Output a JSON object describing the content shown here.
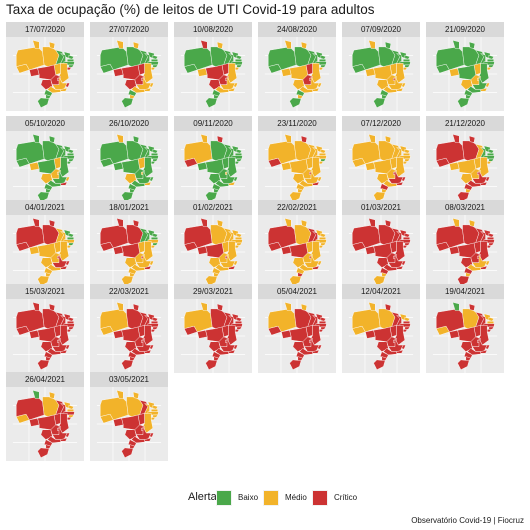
{
  "title": "Taxa de ocupação (%) de leitos de UTI Covid-19 para adultos",
  "caption": "Observatório Covid-19 | Fiocruz",
  "legend": {
    "title": "Alerta",
    "items": [
      {
        "label": "Baixo",
        "color": "#4aa84a"
      },
      {
        "label": "Médio",
        "color": "#f2b32a"
      },
      {
        "label": "Crítico",
        "color": "#cc3333"
      }
    ]
  },
  "chart_data": {
    "type": "choropleth-small-multiples",
    "title": "Taxa de ocupação (%) de leitos de UTI Covid-19 para adultos",
    "categories": [
      "Baixo",
      "Médio",
      "Crítico"
    ],
    "colors": {
      "Baixo": "#4aa84a",
      "Médio": "#f2b32a",
      "Crítico": "#cc3333"
    },
    "dates": [
      "17/07/2020",
      "27/07/2020",
      "10/08/2020",
      "24/08/2020",
      "07/09/2020",
      "21/09/2020",
      "05/10/2020",
      "26/10/2020",
      "09/11/2020",
      "23/11/2020",
      "07/12/2020",
      "21/12/2020",
      "04/01/2021",
      "18/01/2021",
      "01/02/2021",
      "22/02/2021",
      "01/03/2021",
      "08/03/2021",
      "15/03/2021",
      "22/03/2021",
      "29/03/2021",
      "05/04/2021",
      "12/04/2021",
      "19/04/2021",
      "26/04/2021",
      "03/05/2021"
    ],
    "states": [
      "AC",
      "AM",
      "RR",
      "PA",
      "AP",
      "MA",
      "TO",
      "RO",
      "MT",
      "PI",
      "CE",
      "RN",
      "PB",
      "PE",
      "AL",
      "SE",
      "BA",
      "GO",
      "DF",
      "MS",
      "MG",
      "ES",
      "RJ",
      "SP",
      "PR",
      "SC",
      "RS"
    ],
    "alerts": [
      [
        "Médio",
        "Médio",
        "Médio",
        "Médio",
        "Médio",
        "Baixo",
        "Médio",
        "Crítico",
        "Crítico",
        "Baixo",
        "Baixo",
        "Baixo",
        "Baixo",
        "Baixo",
        "Baixo",
        "Crítico",
        "Médio",
        "Crítico",
        "Crítico",
        "Crítico",
        "Médio",
        "Crítico",
        "Médio",
        "Médio",
        "Baixo",
        "Baixo",
        "Baixo"
      ],
      [
        "Baixo",
        "Baixo",
        "Médio",
        "Baixo",
        "Médio",
        "Baixo",
        "Crítico",
        "Crítico",
        "Crítico",
        "Baixo",
        "Baixo",
        "Baixo",
        "Baixo",
        "Baixo",
        "Baixo",
        "Médio",
        "Médio",
        "Crítico",
        "Crítico",
        "Crítico",
        "Médio",
        "Médio",
        "Médio",
        "Médio",
        "Baixo",
        "Médio",
        "Baixo"
      ],
      [
        "Baixo",
        "Baixo",
        "Crítico",
        "Baixo",
        "Médio",
        "Baixo",
        "Crítico",
        "Médio",
        "Crítico",
        "Baixo",
        "Baixo",
        "Baixo",
        "Baixo",
        "Baixo",
        "Baixo",
        "Médio",
        "Médio",
        "Crítico",
        "Crítico",
        "Crítico",
        "Médio",
        "Médio",
        "Médio",
        "Médio",
        "Baixo",
        "Baixo",
        "Baixo"
      ],
      [
        "Baixo",
        "Baixo",
        "Médio",
        "Baixo",
        "Médio",
        "Baixo",
        "Crítico",
        "Médio",
        "Médio",
        "Baixo",
        "Baixo",
        "Baixo",
        "Baixo",
        "Baixo",
        "Baixo",
        "Médio",
        "Médio",
        "Crítico",
        "Crítico",
        "Médio",
        "Médio",
        "Médio",
        "Médio",
        "Médio",
        "Baixo",
        "Médio",
        "Baixo"
      ],
      [
        "Baixo",
        "Baixo",
        "Médio",
        "Baixo",
        "Baixo",
        "Baixo",
        "Médio",
        "Médio",
        "Médio",
        "Baixo",
        "Baixo",
        "Baixo",
        "Baixo",
        "Baixo",
        "Baixo",
        "Médio",
        "Médio",
        "Médio",
        "Crítico",
        "Médio",
        "Médio",
        "Médio",
        "Médio",
        "Médio",
        "Baixo",
        "Baixo",
        "Baixo"
      ],
      [
        "Baixo",
        "Baixo",
        "Baixo",
        "Baixo",
        "Baixo",
        "Baixo",
        "Médio",
        "Médio",
        "Baixo",
        "Baixo",
        "Baixo",
        "Baixo",
        "Baixo",
        "Baixo",
        "Baixo",
        "Médio",
        "Baixo",
        "Médio",
        "Médio",
        "Médio",
        "Baixo",
        "Médio",
        "Médio",
        "Baixo",
        "Baixo",
        "Baixo",
        "Baixo"
      ],
      [
        "Baixo",
        "Baixo",
        "Baixo",
        "Baixo",
        "Baixo",
        "Baixo",
        "Médio",
        "Médio",
        "Baixo",
        "Baixo",
        "Baixo",
        "Baixo",
        "Baixo",
        "Baixo",
        "Baixo",
        "Baixo",
        "Baixo",
        "Médio",
        "Médio",
        "Médio",
        "Baixo",
        "Médio",
        "Crítico",
        "Baixo",
        "Baixo",
        "Baixo",
        "Baixo"
      ],
      [
        "Baixo",
        "Baixo",
        "Médio",
        "Baixo",
        "Baixo",
        "Baixo",
        "Médio",
        "Baixo",
        "Baixo",
        "Baixo",
        "Baixo",
        "Baixo",
        "Baixo",
        "Baixo",
        "Baixo",
        "Baixo",
        "Baixo",
        "Baixo",
        "Médio",
        "Médio",
        "Baixo",
        "Baixo",
        "Médio",
        "Baixo",
        "Baixo",
        "Baixo",
        "Baixo"
      ],
      [
        "Crítico",
        "Médio",
        "Médio",
        "Baixo",
        "Crítico",
        "Baixo",
        "Baixo",
        "Baixo",
        "Baixo",
        "Baixo",
        "Baixo",
        "Baixo",
        "Baixo",
        "Baixo",
        "Baixo",
        "Baixo",
        "Baixo",
        "Baixo",
        "Médio",
        "Baixo",
        "Baixo",
        "Baixo",
        "Médio",
        "Baixo",
        "Baixo",
        "Baixo",
        "Baixo"
      ],
      [
        "Crítico",
        "Médio",
        "Médio",
        "Médio",
        "Crítico",
        "Médio",
        "Médio",
        "Médio",
        "Médio",
        "Médio",
        "Médio",
        "Médio",
        "Médio",
        "Médio",
        "Baixo",
        "Médio",
        "Médio",
        "Médio",
        "Crítico",
        "Médio",
        "Médio",
        "Médio",
        "Crítico",
        "Médio",
        "Médio",
        "Médio",
        "Médio"
      ],
      [
        "Médio",
        "Médio",
        "Médio",
        "Médio",
        "Médio",
        "Médio",
        "Médio",
        "Médio",
        "Médio",
        "Médio",
        "Médio",
        "Médio",
        "Médio",
        "Médio",
        "Médio",
        "Médio",
        "Médio",
        "Médio",
        "Crítico",
        "Médio",
        "Crítico",
        "Crítico",
        "Crítico",
        "Médio",
        "Crítico",
        "Médio",
        "Médio"
      ],
      [
        "Crítico",
        "Crítico",
        "Crítico",
        "Crítico",
        "Crítico",
        "Médio",
        "Médio",
        "Médio",
        "Médio",
        "Baixo",
        "Baixo",
        "Baixo",
        "Baixo",
        "Baixo",
        "Baixo",
        "Médio",
        "Médio",
        "Médio",
        "Crítico",
        "Médio",
        "Crítico",
        "Crítico",
        "Crítico",
        "Crítico",
        "Crítico",
        "Médio",
        "Crítico"
      ],
      [
        "Crítico",
        "Crítico",
        "Crítico",
        "Crítico",
        "Crítico",
        "Médio",
        "Médio",
        "Médio",
        "Médio",
        "Médio",
        "Baixo",
        "Baixo",
        "Baixo",
        "Médio",
        "Baixo",
        "Médio",
        "Médio",
        "Médio",
        "Crítico",
        "Médio",
        "Crítico",
        "Crítico",
        "Crítico",
        "Médio",
        "Médio",
        "Médio",
        "Médio"
      ],
      [
        "Crítico",
        "Crítico",
        "Crítico",
        "Crítico",
        "Crítico",
        "Baixo",
        "Médio",
        "Crítico",
        "Crítico",
        "Baixo",
        "Baixo",
        "Baixo",
        "Baixo",
        "Médio",
        "Baixo",
        "Médio",
        "Médio",
        "Médio",
        "Crítico",
        "Médio",
        "Médio",
        "Médio",
        "Crítico",
        "Médio",
        "Médio",
        "Médio",
        "Médio"
      ],
      [
        "Crítico",
        "Crítico",
        "Crítico",
        "Médio",
        "Médio",
        "Médio",
        "Médio",
        "Crítico",
        "Crítico",
        "Médio",
        "Médio",
        "Médio",
        "Médio",
        "Médio",
        "Médio",
        "Médio",
        "Médio",
        "Médio",
        "Crítico",
        "Médio",
        "Médio",
        "Médio",
        "Crítico",
        "Médio",
        "Médio",
        "Médio",
        "Médio"
      ],
      [
        "Crítico",
        "Crítico",
        "Médio",
        "Médio",
        "Médio",
        "Crítico",
        "Médio",
        "Crítico",
        "Crítico",
        "Crítico",
        "Médio",
        "Médio",
        "Médio",
        "Médio",
        "Médio",
        "Médio",
        "Médio",
        "Médio",
        "Crítico",
        "Médio",
        "Médio",
        "Médio",
        "Crítico",
        "Médio",
        "Médio",
        "Crítico",
        "Médio"
      ],
      [
        "Crítico",
        "Crítico",
        "Crítico",
        "Crítico",
        "Crítico",
        "Crítico",
        "Crítico",
        "Crítico",
        "Crítico",
        "Crítico",
        "Crítico",
        "Crítico",
        "Crítico",
        "Crítico",
        "Crítico",
        "Crítico",
        "Crítico",
        "Crítico",
        "Crítico",
        "Crítico",
        "Crítico",
        "Crítico",
        "Crítico",
        "Crítico",
        "Crítico",
        "Médio",
        "Médio"
      ],
      [
        "Crítico",
        "Crítico",
        "Médio",
        "Crítico",
        "Médio",
        "Crítico",
        "Crítico",
        "Crítico",
        "Crítico",
        "Crítico",
        "Crítico",
        "Crítico",
        "Crítico",
        "Crítico",
        "Crítico",
        "Crítico",
        "Crítico",
        "Crítico",
        "Crítico",
        "Crítico",
        "Médio",
        "Médio",
        "Crítico",
        "Médio",
        "Crítico",
        "Médio",
        "Crítico"
      ],
      [
        "Crítico",
        "Crítico",
        "Crítico",
        "Crítico",
        "Crítico",
        "Crítico",
        "Crítico",
        "Crítico",
        "Crítico",
        "Crítico",
        "Crítico",
        "Crítico",
        "Crítico",
        "Crítico",
        "Crítico",
        "Crítico",
        "Crítico",
        "Crítico",
        "Crítico",
        "Crítico",
        "Crítico",
        "Crítico",
        "Crítico",
        "Crítico",
        "Crítico",
        "Crítico",
        "Crítico"
      ],
      [
        "Médio",
        "Médio",
        "Médio",
        "Crítico",
        "Crítico",
        "Crítico",
        "Crítico",
        "Crítico",
        "Crítico",
        "Crítico",
        "Crítico",
        "Crítico",
        "Crítico",
        "Crítico",
        "Crítico",
        "Crítico",
        "Crítico",
        "Crítico",
        "Crítico",
        "Crítico",
        "Crítico",
        "Crítico",
        "Crítico",
        "Crítico",
        "Crítico",
        "Crítico",
        "Crítico"
      ],
      [
        "Crítico",
        "Médio",
        "Médio",
        "Crítico",
        "Crítico",
        "Crítico",
        "Crítico",
        "Crítico",
        "Crítico",
        "Crítico",
        "Crítico",
        "Crítico",
        "Crítico",
        "Crítico",
        "Crítico",
        "Crítico",
        "Crítico",
        "Crítico",
        "Crítico",
        "Crítico",
        "Crítico",
        "Crítico",
        "Crítico",
        "Crítico",
        "Crítico",
        "Crítico",
        "Crítico"
      ],
      [
        "Crítico",
        "Médio",
        "Médio",
        "Crítico",
        "Médio",
        "Crítico",
        "Crítico",
        "Crítico",
        "Crítico",
        "Crítico",
        "Crítico",
        "Crítico",
        "Crítico",
        "Crítico",
        "Crítico",
        "Crítico",
        "Crítico",
        "Crítico",
        "Crítico",
        "Crítico",
        "Crítico",
        "Crítico",
        "Crítico",
        "Crítico",
        "Crítico",
        "Crítico",
        "Crítico"
      ],
      [
        "Médio",
        "Médio",
        "Médio",
        "Médio",
        "Crítico",
        "Crítico",
        "Crítico",
        "Crítico",
        "Crítico",
        "Crítico",
        "Médio",
        "Médio",
        "Crítico",
        "Crítico",
        "Crítico",
        "Crítico",
        "Crítico",
        "Crítico",
        "Crítico",
        "Crítico",
        "Crítico",
        "Crítico",
        "Crítico",
        "Crítico",
        "Crítico",
        "Crítico",
        "Crítico"
      ],
      [
        "Médio",
        "Crítico",
        "Baixo",
        "Médio",
        "Crítico",
        "Crítico",
        "Crítico",
        "Crítico",
        "Crítico",
        "Crítico",
        "Médio",
        "Médio",
        "Médio",
        "Crítico",
        "Crítico",
        "Crítico",
        "Crítico",
        "Crítico",
        "Crítico",
        "Crítico",
        "Crítico",
        "Crítico",
        "Crítico",
        "Crítico",
        "Crítico",
        "Crítico",
        "Crítico"
      ],
      [
        "Médio",
        "Crítico",
        "Baixo",
        "Médio",
        "Médio",
        "Crítico",
        "Crítico",
        "Crítico",
        "Crítico",
        "Crítico",
        "Médio",
        "Médio",
        "Médio",
        "Crítico",
        "Médio",
        "Crítico",
        "Crítico",
        "Crítico",
        "Crítico",
        "Crítico",
        "Crítico",
        "Crítico",
        "Crítico",
        "Crítico",
        "Crítico",
        "Crítico",
        "Crítico"
      ],
      [
        "Médio",
        "Médio",
        "Médio",
        "Médio",
        "Médio",
        "Crítico",
        "Crítico",
        "Crítico",
        "Crítico",
        "Médio",
        "Médio",
        "Médio",
        "Médio",
        "Médio",
        "Médio",
        "Médio",
        "Médio",
        "Crítico",
        "Crítico",
        "Crítico",
        "Crítico",
        "Crítico",
        "Crítico",
        "Crítico",
        "Crítico",
        "Crítico",
        "Crítico"
      ]
    ]
  }
}
